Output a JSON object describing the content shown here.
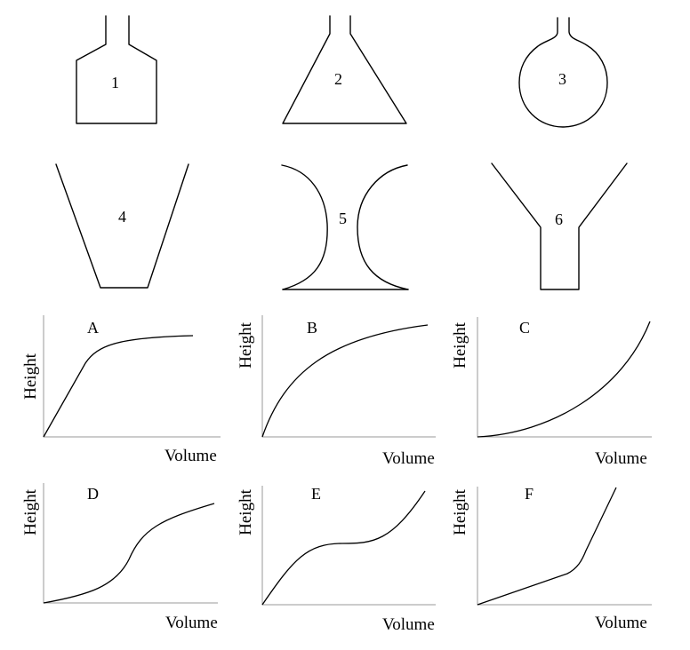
{
  "containers": [
    {
      "label": "1",
      "shape": "bottle-straight-sides"
    },
    {
      "label": "2",
      "shape": "cone-flask"
    },
    {
      "label": "3",
      "shape": "round-flask"
    },
    {
      "label": "4",
      "shape": "inverted-trapezoid"
    },
    {
      "label": "5",
      "shape": "hourglass-concave"
    },
    {
      "label": "6",
      "shape": "funnel"
    }
  ],
  "graphs": [
    {
      "label": "A",
      "xlabel": "Volume",
      "ylabel": "Height"
    },
    {
      "label": "B",
      "xlabel": "Volume",
      "ylabel": "Height"
    },
    {
      "label": "C",
      "xlabel": "Volume",
      "ylabel": "Height"
    },
    {
      "label": "D",
      "xlabel": "Volume",
      "ylabel": "Height"
    },
    {
      "label": "E",
      "xlabel": "Volume",
      "ylabel": "Height"
    },
    {
      "label": "F",
      "xlabel": "Volume",
      "ylabel": "Height"
    }
  ]
}
